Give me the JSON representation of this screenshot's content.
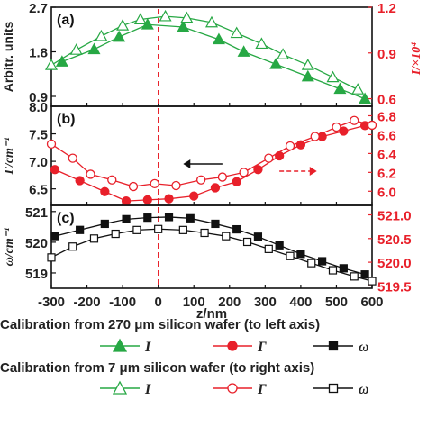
{
  "chart_data": {
    "type": "line",
    "x": {
      "label": "z/nm",
      "range": [
        -300,
        600
      ],
      "ticks": [
        -300,
        -200,
        -100,
        0,
        100,
        200,
        300,
        400,
        500,
        600
      ],
      "tick_labels": [
        "-300",
        "-200",
        "-100",
        "0",
        "100",
        "200",
        "300",
        "400",
        "500",
        "600"
      ]
    },
    "panels": [
      {
        "label": "(a)",
        "left_axis": {
          "label": "Arbitr. units",
          "range": [
            0.7,
            2.7
          ],
          "ticks": [
            "0.9",
            "1.8",
            "2.7"
          ],
          "tick_values": [
            0.9,
            1.8,
            2.7
          ]
        },
        "right_axis": {
          "label": "I/×10⁴",
          "range": [
            0.55,
            1.2
          ],
          "ticks": [
            "0.6",
            "0.9",
            "1.2"
          ],
          "tick_values": [
            0.6,
            0.9,
            1.2
          ]
        },
        "series": [
          {
            "symbol": "I",
            "calibration": "270um",
            "axis": "left",
            "color": "#27a844",
            "marker": "triangle-filled",
            "x": [
              -270,
              -180,
              -110,
              -30,
              70,
              170,
              240,
              330,
              420,
              510,
              580
            ],
            "y": [
              1.6,
              1.85,
              2.1,
              2.35,
              2.3,
              2.05,
              1.8,
              1.55,
              1.3,
              1.05,
              0.85
            ]
          },
          {
            "symbol": "I",
            "calibration": "7um",
            "axis": "right",
            "color": "#27a844",
            "marker": "triangle-open",
            "x": [
              -300,
              -230,
              -160,
              -100,
              -50,
              20,
              80,
              150,
              220,
              290,
              350,
              420,
              490,
              560
            ],
            "y": [
              0.82,
              0.92,
              1.01,
              1.08,
              1.12,
              1.14,
              1.13,
              1.1,
              1.03,
              0.96,
              0.89,
              0.82,
              0.74,
              0.66
            ]
          }
        ]
      },
      {
        "label": "(b)",
        "left_axis": {
          "label": "Γ/cm⁻¹",
          "range": [
            6.2,
            8.0
          ],
          "ticks": [
            "6.5",
            "7.0",
            "7.5",
            "8.0"
          ],
          "tick_values": [
            6.5,
            7.0,
            7.5,
            8.0
          ]
        },
        "right_axis": {
          "label": "",
          "range": [
            5.85,
            6.9
          ],
          "ticks": [
            "6.0",
            "6.2",
            "6.4",
            "6.6",
            "6.8"
          ],
          "tick_values": [
            6.0,
            6.2,
            6.4,
            6.6,
            6.8
          ]
        },
        "series": [
          {
            "symbol": "Γ",
            "calibration": "270um",
            "axis": "left",
            "color": "#e8202a",
            "marker": "circle-filled",
            "x": [
              -290,
              -220,
              -150,
              -90,
              -30,
              30,
              100,
              160,
              220,
              280,
              340,
              400,
              460,
              520,
              580
            ],
            "y": [
              6.85,
              6.65,
              6.45,
              6.28,
              6.3,
              6.32,
              6.37,
              6.52,
              6.63,
              6.85,
              7.1,
              7.3,
              7.45,
              7.55,
              7.65
            ]
          },
          {
            "symbol": "Γ",
            "calibration": "7um",
            "axis": "right",
            "color": "#e8202a",
            "marker": "circle-open",
            "x": [
              -300,
              -240,
              -190,
              -130,
              -70,
              -10,
              50,
              120,
              180,
              240,
              310,
              370,
              440,
              500,
              550,
              600
            ],
            "y": [
              6.5,
              6.35,
              6.18,
              6.12,
              6.05,
              6.08,
              6.06,
              6.12,
              6.15,
              6.2,
              6.35,
              6.48,
              6.58,
              6.68,
              6.75,
              6.7
            ]
          }
        ]
      },
      {
        "label": "(c)",
        "left_axis": {
          "label": "ω/cm⁻¹",
          "range": [
            518.5,
            521.2
          ],
          "ticks": [
            "519",
            "520",
            "521"
          ],
          "tick_values": [
            519,
            520,
            521
          ]
        },
        "right_axis": {
          "label": "",
          "range": [
            519.45,
            521.2
          ],
          "ticks": [
            "519.5",
            "520.0",
            "520.5",
            "521.0"
          ],
          "tick_values": [
            519.5,
            520.0,
            520.5,
            521.0
          ]
        },
        "series": [
          {
            "symbol": "ω",
            "calibration": "270um",
            "axis": "left",
            "color": "#111111",
            "marker": "square-filled",
            "x": [
              -290,
              -220,
              -150,
              -90,
              -30,
              30,
              90,
              160,
              220,
              280,
              340,
              400,
              460,
              520,
              580
            ],
            "y": [
              520.2,
              520.4,
              520.6,
              520.75,
              520.8,
              520.82,
              520.78,
              520.6,
              520.42,
              520.18,
              519.9,
              519.62,
              519.38,
              519.15,
              518.95
            ]
          },
          {
            "symbol": "ω",
            "calibration": "7um",
            "axis": "right",
            "color": "#111111",
            "marker": "square-open",
            "x": [
              -300,
              -240,
              -180,
              -120,
              -60,
              0,
              70,
              130,
              190,
              250,
              310,
              370,
              430,
              490,
              550,
              600
            ],
            "y": [
              520.1,
              520.33,
              520.5,
              520.6,
              520.68,
              520.7,
              520.68,
              520.62,
              520.55,
              520.43,
              520.28,
              520.13,
              519.98,
              519.83,
              519.7,
              519.6
            ]
          }
        ]
      }
    ],
    "vertical_line_x": 0,
    "annotations": [
      "arrow-left-to-left-axis",
      "arrow-right-dashed-to-right-axis"
    ],
    "legend": {
      "rows": [
        {
          "title": "Calibration from 270 μm silicon wafer (to left axis)",
          "items": [
            "I",
            "Γ",
            "ω"
          ],
          "fill": "filled"
        },
        {
          "title": "Calibration from 7 μm silicon wafer (to right axis)",
          "items": [
            "I",
            "Γ",
            "ω"
          ],
          "fill": "open"
        }
      ]
    },
    "colors": {
      "I": "#27a844",
      "Γ": "#e8202a",
      "ω": "#111111",
      "right_axis": "#e8202a"
    }
  }
}
